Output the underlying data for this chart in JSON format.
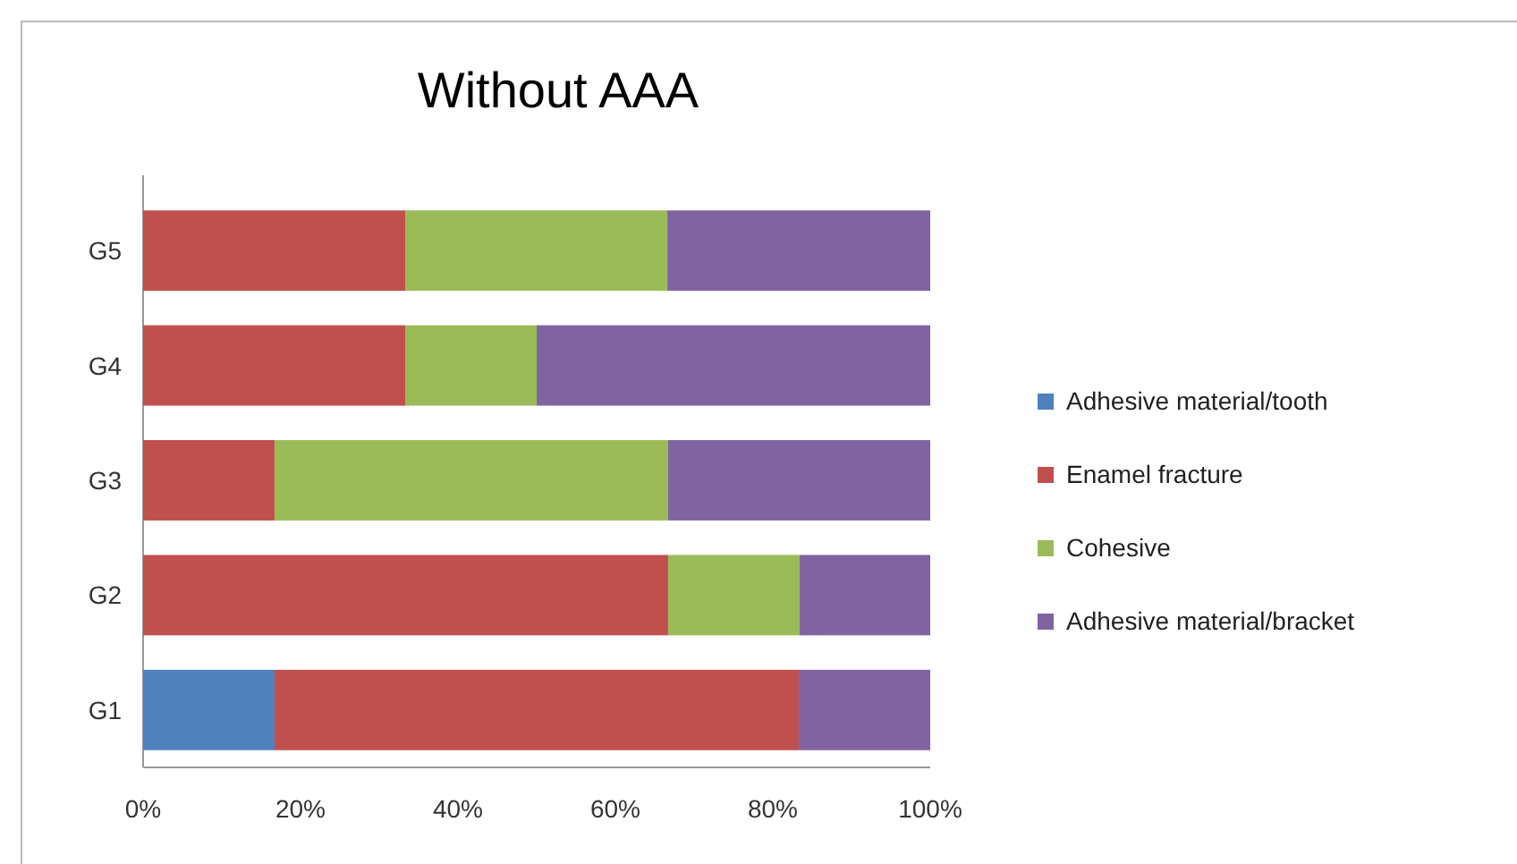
{
  "chart_data": {
    "type": "bar",
    "orientation": "horizontal",
    "stacked": true,
    "title": "Without AAA",
    "categories": [
      "G5",
      "G4",
      "G3",
      "G2",
      "G1"
    ],
    "series": [
      {
        "name": "Adhesive material/tooth",
        "color": "#4f81bd",
        "values": [
          0,
          0,
          0,
          0,
          16.7
        ]
      },
      {
        "name": "Enamel fracture",
        "color": "#c0504d",
        "values": [
          33.3,
          33.3,
          16.7,
          66.7,
          66.6
        ]
      },
      {
        "name": "Cohesive",
        "color": "#9bbb59",
        "values": [
          33.3,
          16.7,
          50,
          16.7,
          0
        ]
      },
      {
        "name": "Adhesive material/bracket",
        "color": "#8064a2",
        "values": [
          33.4,
          50,
          33.3,
          16.6,
          16.7
        ]
      }
    ],
    "xlim": [
      0,
      100
    ],
    "xticks": [
      {
        "value": 0,
        "label": "0%"
      },
      {
        "value": 20,
        "label": "20%"
      },
      {
        "value": 40,
        "label": "40%"
      },
      {
        "value": 60,
        "label": "60%"
      },
      {
        "value": 80,
        "label": "80%"
      },
      {
        "value": 100,
        "label": "100%"
      }
    ],
    "grid": false,
    "legend": "right"
  }
}
